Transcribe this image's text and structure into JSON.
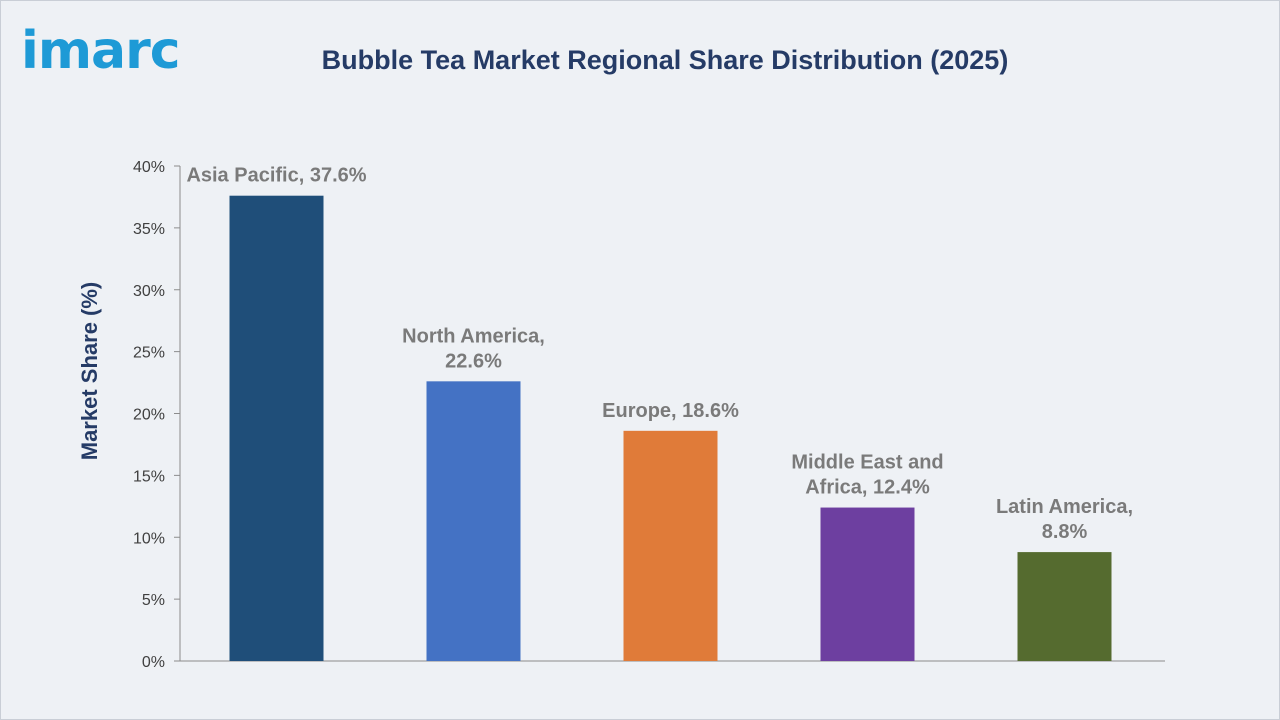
{
  "header": {
    "logo_text": "imarc",
    "title": "Bubble Tea Market Regional Share Distribution (2025)"
  },
  "chart_data": {
    "type": "bar",
    "title": "Bubble Tea Market Regional Share Distribution (2025)",
    "xlabel": "",
    "ylabel": "Market Share (%)",
    "ylim": [
      0,
      40
    ],
    "yticks": [
      0,
      5,
      10,
      15,
      20,
      25,
      30,
      35,
      40
    ],
    "ytick_labels": [
      "0%",
      "5%",
      "10%",
      "15%",
      "20%",
      "25%",
      "30%",
      "35%",
      "40%"
    ],
    "grid": false,
    "legend": "none",
    "categories": [
      "Asia Pacific",
      "North America",
      "Europe",
      "Middle East and Africa",
      "Latin America"
    ],
    "values": [
      37.6,
      22.6,
      18.6,
      12.4,
      8.8
    ],
    "data_labels": [
      [
        "Asia Pacific, 37.6%"
      ],
      [
        "North America,",
        "22.6%"
      ],
      [
        "Europe, 18.6%"
      ],
      [
        "Middle East and",
        "Africa, 12.4%"
      ],
      [
        "Latin America,",
        "8.8%"
      ]
    ],
    "colors": [
      "#1f4e79",
      "#4472c4",
      "#e07b39",
      "#6d3fa0",
      "#556b2f"
    ]
  }
}
